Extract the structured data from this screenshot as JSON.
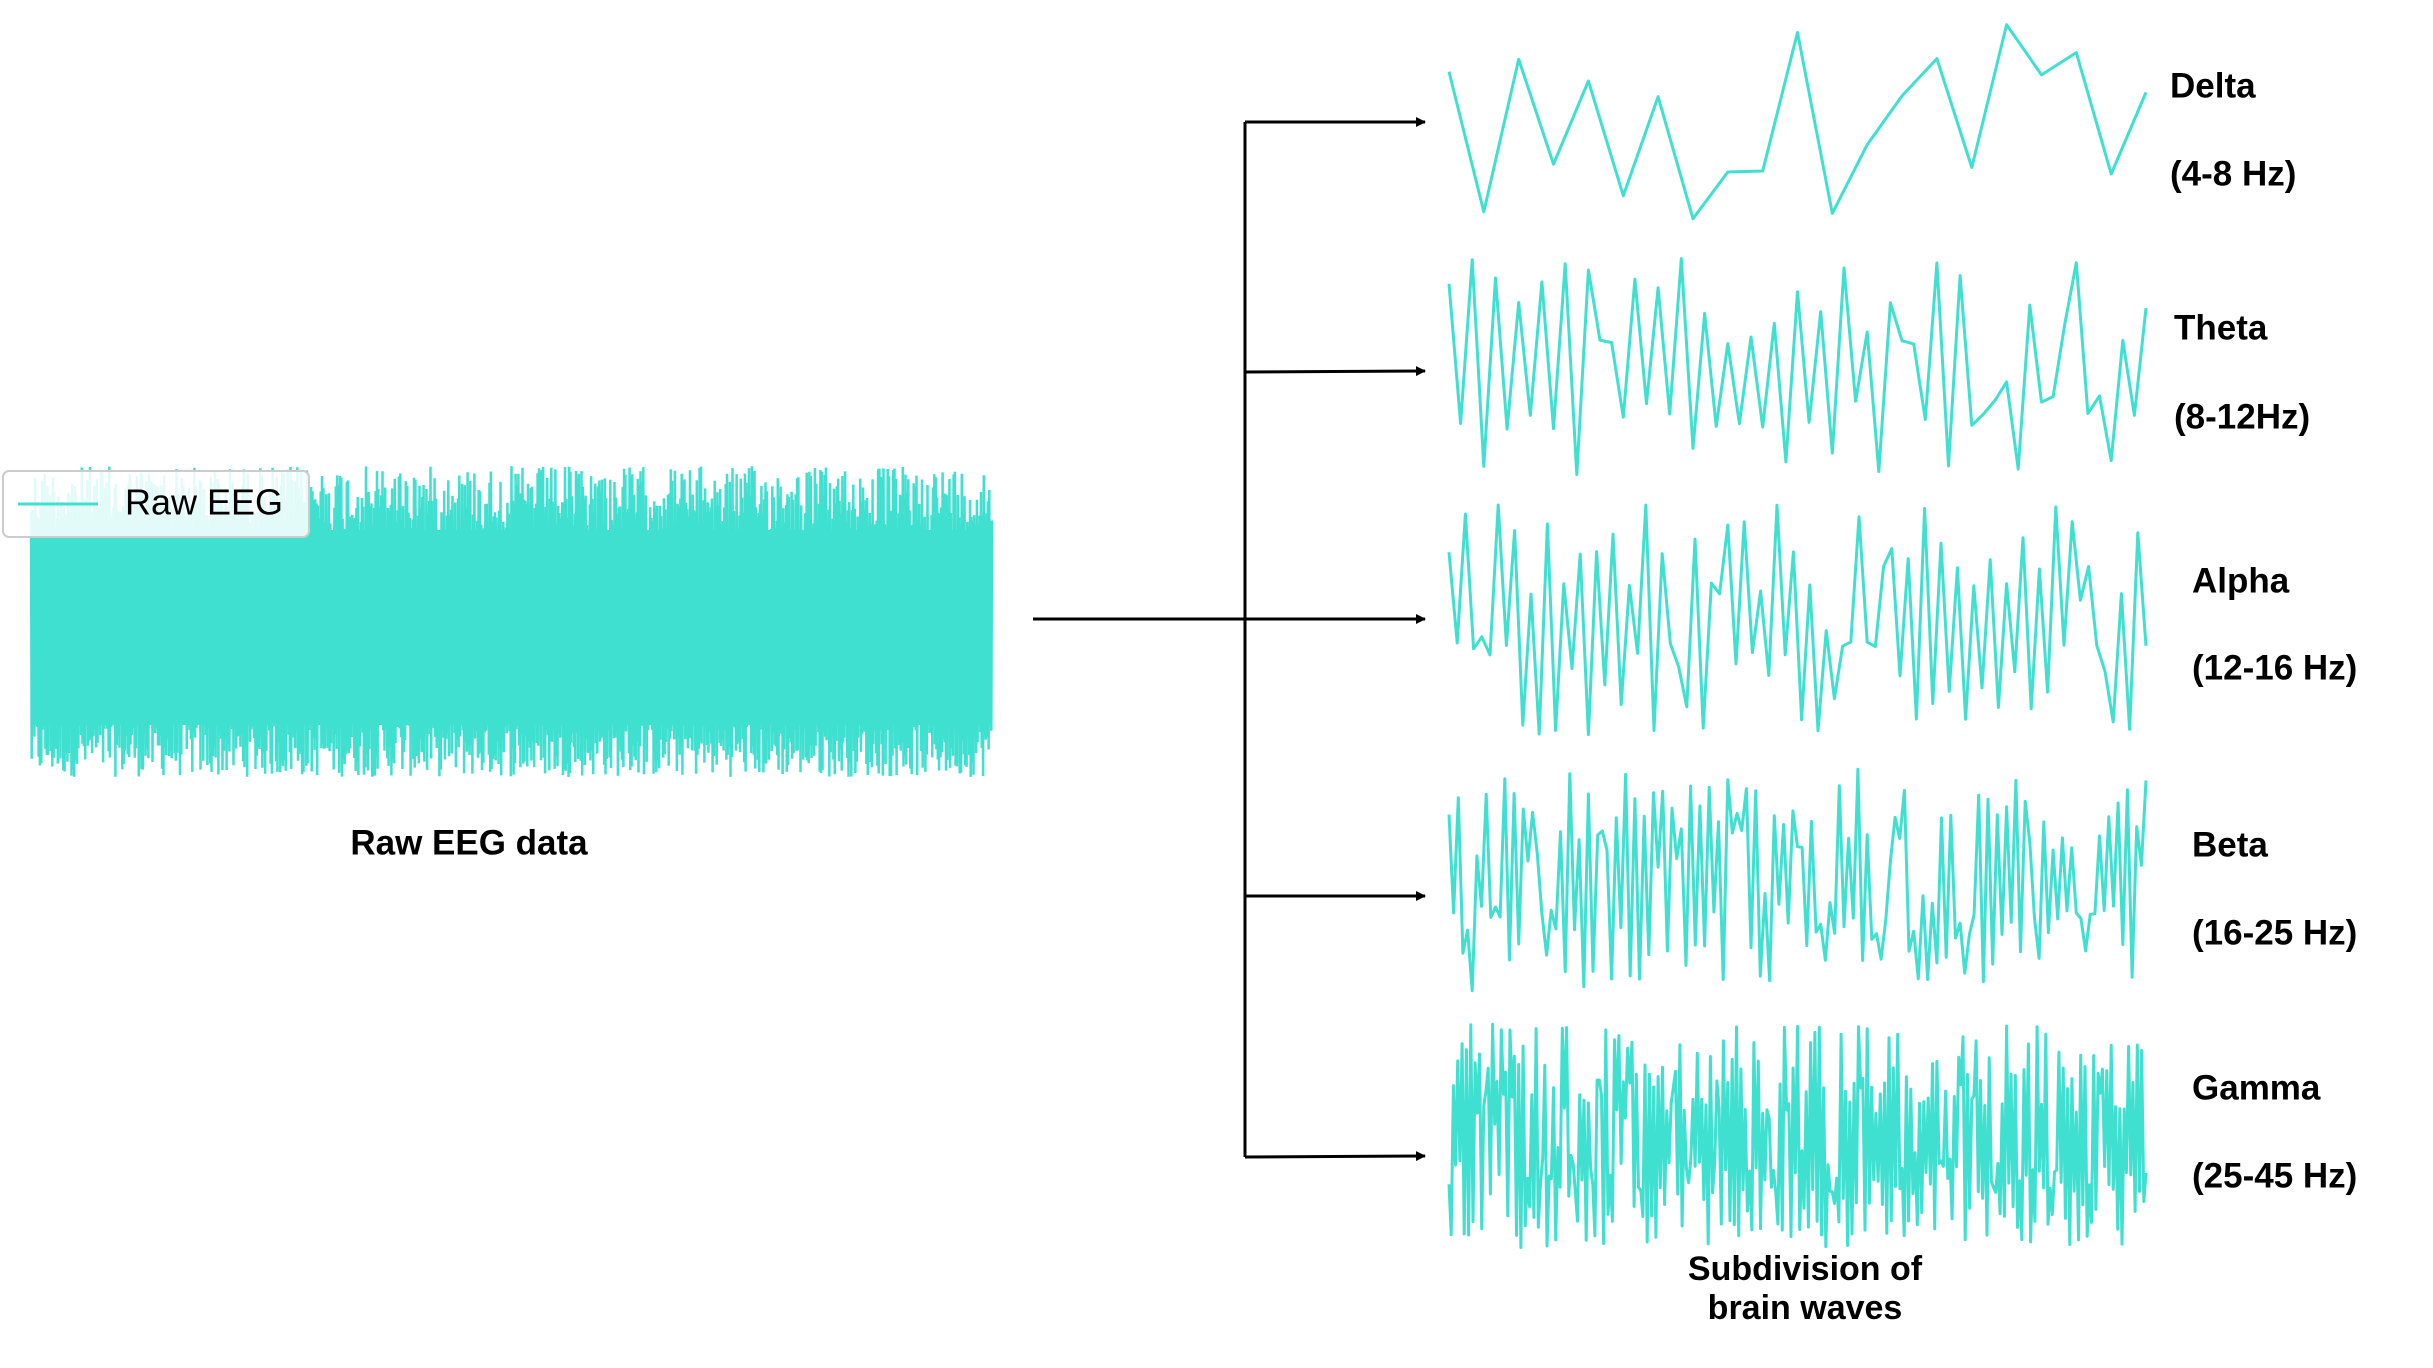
{
  "raw": {
    "legend": "Raw EEG",
    "caption": "Raw EEG data"
  },
  "bands": [
    {
      "name": "Delta",
      "range": "(4-8 Hz)"
    },
    {
      "name": "Theta",
      "range": "(8-12Hz)"
    },
    {
      "name": "Alpha",
      "range": "(12-16 Hz)"
    },
    {
      "name": "Beta",
      "range": "(16-25 Hz)"
    },
    {
      "name": "Gamma",
      "range": "(25-45 Hz)"
    }
  ],
  "caption": "Subdivision of brain waves"
}
